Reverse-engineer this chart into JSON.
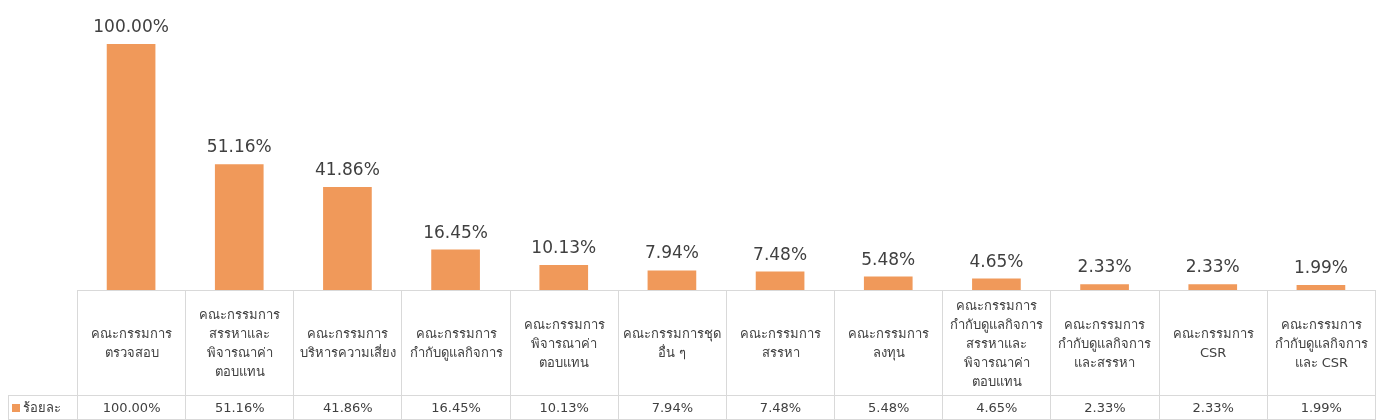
{
  "chart_data": {
    "type": "bar",
    "categories": [
      "คณะกรรมการตรวจสอบ",
      "คณะกรรมการสรรหาและพิจารณาค่าตอบแทน",
      "คณะกรรมการบริหารความเสี่ยง",
      "คณะกรรมการกำกับดูแลกิจการ",
      "คณะกรรมการพิจารณาค่าตอบแทน",
      "คณะกรรมการชุดอื่น ๆ",
      "คณะกรรมการสรรหา",
      "คณะกรรมการลงทุน",
      "คณะกรรมการกำกับดูแลกิจการ สรรหาและพิจารณาค่าตอบแทน",
      "คณะกรรมการกำกับดูแลกิจการและสรรหา",
      "คณะกรรมการ CSR",
      "คณะกรรมการกำกับดูแลกิจการและ CSR"
    ],
    "series": [
      {
        "name": "ร้อยละ",
        "color": "#f0995a",
        "values": [
          100.0,
          51.16,
          41.86,
          16.45,
          10.13,
          7.94,
          7.48,
          5.48,
          4.65,
          2.33,
          2.33,
          1.99
        ],
        "value_labels": [
          "100.00%",
          "51.16%",
          "41.86%",
          "16.45%",
          "10.13%",
          "7.94%",
          "7.48%",
          "5.48%",
          "4.65%",
          "2.33%",
          "2.33%",
          "1.99%"
        ]
      }
    ],
    "legend": "bottom left"
  }
}
